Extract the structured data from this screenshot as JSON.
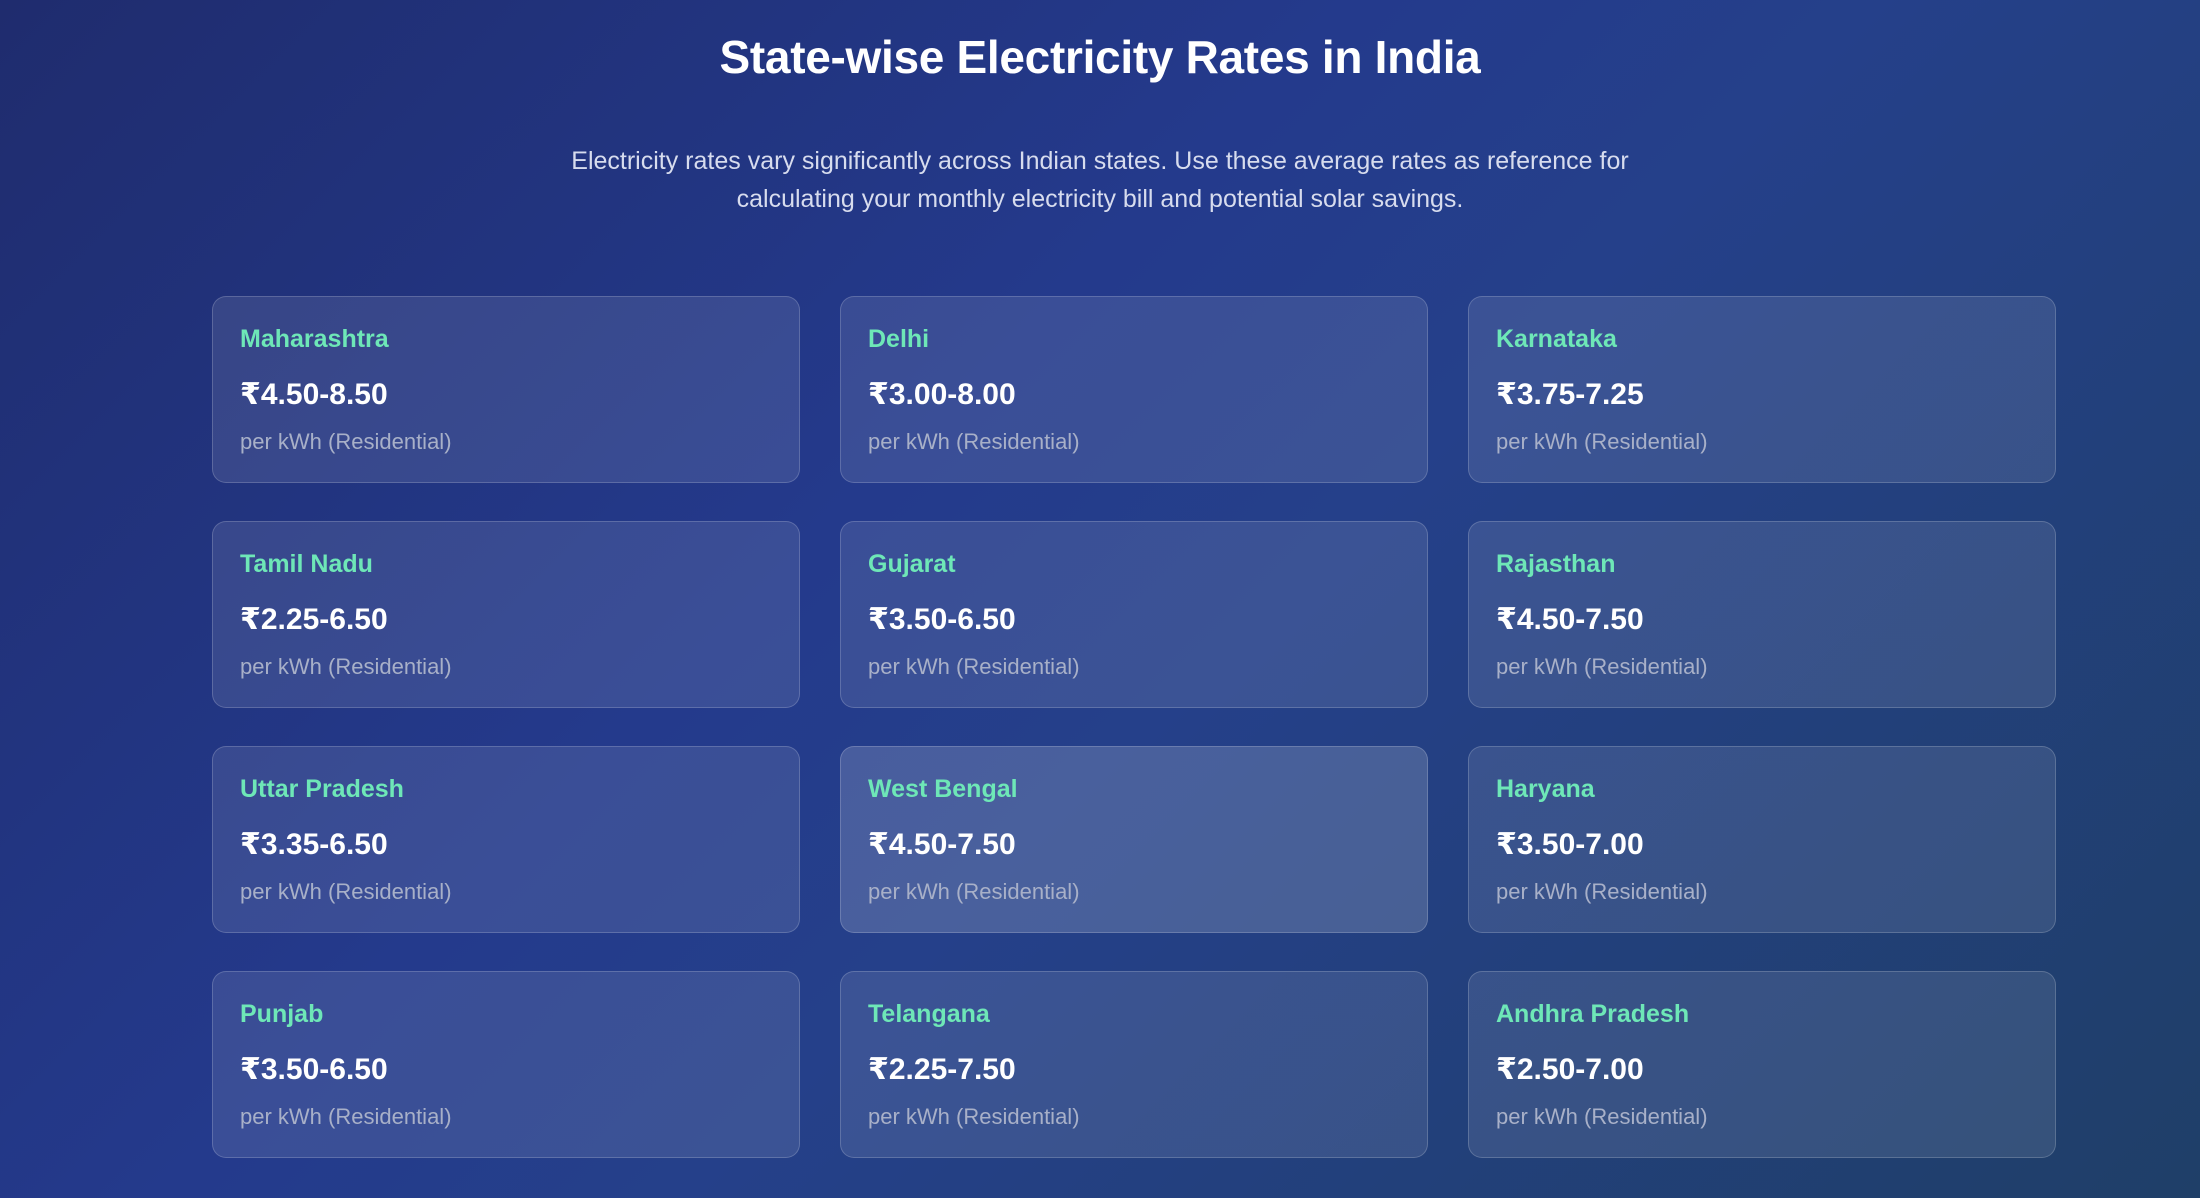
{
  "header": {
    "title": "State-wise Electricity Rates in India",
    "description": "Electricity rates vary significantly across Indian states. Use these average rates as reference for calculating your monthly electricity bill and potential solar savings."
  },
  "colors": {
    "accent_state_name": "#6ee7b7",
    "background_start": "#1f2c6e",
    "background_end": "#1f3f68"
  },
  "rates": [
    {
      "state": "Maharashtra",
      "rate": "₹4.50-8.50",
      "unit": "per kWh (Residential)"
    },
    {
      "state": "Delhi",
      "rate": "₹3.00-8.00",
      "unit": "per kWh (Residential)"
    },
    {
      "state": "Karnataka",
      "rate": "₹3.75-7.25",
      "unit": "per kWh (Residential)"
    },
    {
      "state": "Tamil Nadu",
      "rate": "₹2.25-6.50",
      "unit": "per kWh (Residential)"
    },
    {
      "state": "Gujarat",
      "rate": "₹3.50-6.50",
      "unit": "per kWh (Residential)"
    },
    {
      "state": "Rajasthan",
      "rate": "₹4.50-7.50",
      "unit": "per kWh (Residential)"
    },
    {
      "state": "Uttar Pradesh",
      "rate": "₹3.35-6.50",
      "unit": "per kWh (Residential)"
    },
    {
      "state": "West Bengal",
      "rate": "₹4.50-7.50",
      "unit": "per kWh (Residential)"
    },
    {
      "state": "Haryana",
      "rate": "₹3.50-7.00",
      "unit": "per kWh (Residential)"
    },
    {
      "state": "Punjab",
      "rate": "₹3.50-6.50",
      "unit": "per kWh (Residential)"
    },
    {
      "state": "Telangana",
      "rate": "₹2.25-7.50",
      "unit": "per kWh (Residential)"
    },
    {
      "state": "Andhra Pradesh",
      "rate": "₹2.50-7.00",
      "unit": "per kWh (Residential)"
    }
  ]
}
